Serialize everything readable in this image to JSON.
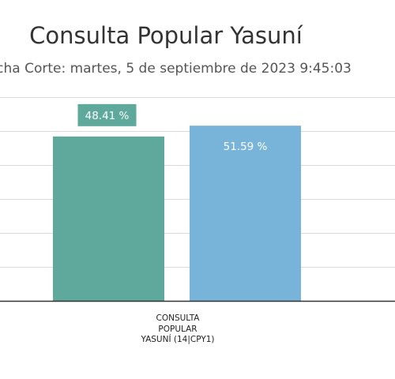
{
  "chart_data": {
    "type": "bar",
    "title": "Consulta Popular Yasuní",
    "subtitle": "cha Corte: martes, 5 de septiembre de 2023 9:45:03",
    "categories": [
      "CONSULTA POPULAR YASUNÍ (14|CPY1)"
    ],
    "category_label_lines": [
      "CONSULTA",
      "POPULAR",
      "YASUNÍ (14|CPY1)"
    ],
    "series": [
      {
        "values": [
          48.41
        ],
        "color": "#5fa89c",
        "label": "48.41 %"
      },
      {
        "values": [
          51.59
        ],
        "color": "#78b4d9",
        "label": "51.59 %"
      }
    ],
    "ylim": [
      0,
      60
    ],
    "grid": true,
    "legend": "none",
    "colors": {
      "gridline": "#d9d9d9",
      "axis": "#333333",
      "label_text": "#ffffff"
    }
  }
}
